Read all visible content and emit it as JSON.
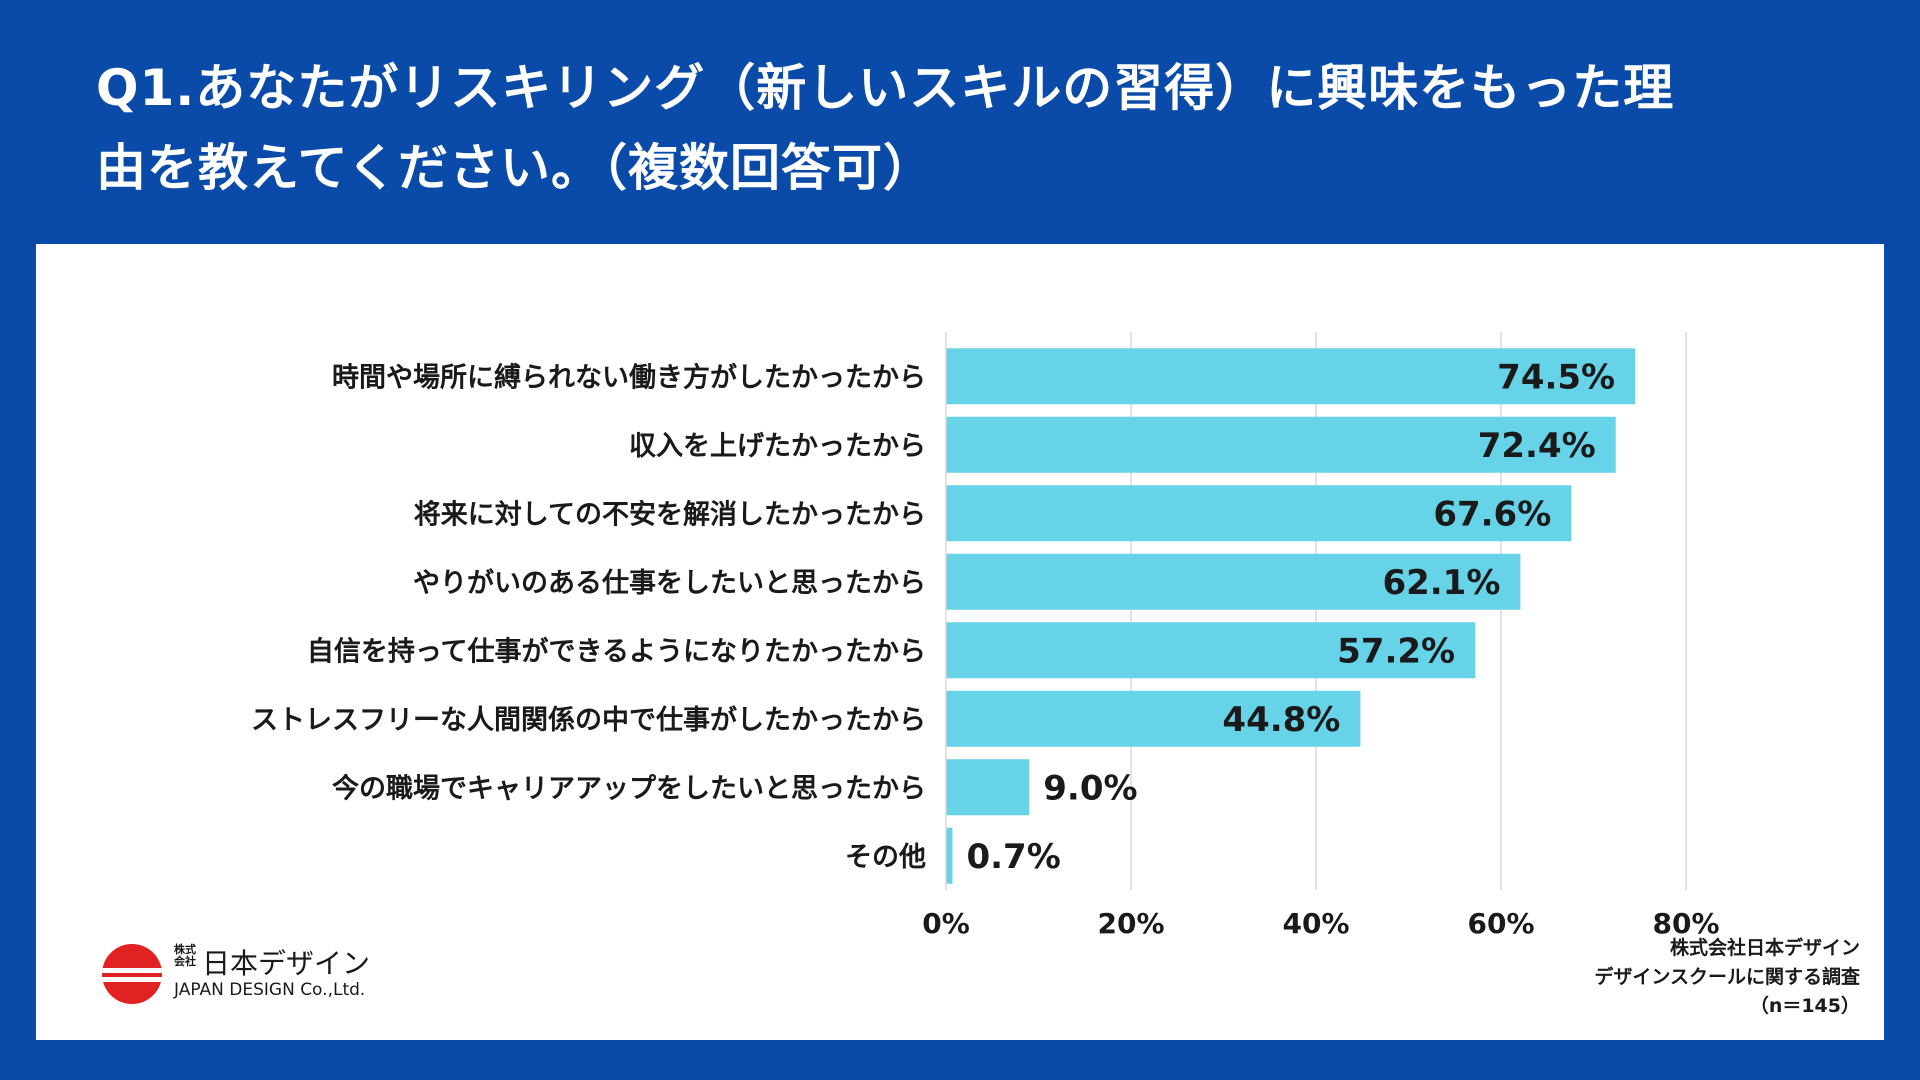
{
  "title_line1": "Q1.あなたがリスキリング（新しいスキルの習得）に興味をもった理",
  "title_line2": "由を教えてください。（複数回答可）",
  "colors": {
    "background": "#0a4aa8",
    "panel": "#ffffff",
    "bar": "#66d3e8",
    "grid": "#d9d9d9",
    "text": "#1a1a1a"
  },
  "chart_data": {
    "type": "bar",
    "orientation": "horizontal",
    "categories": [
      "時間や場所に縛られない働き方がしたかったから",
      "収入を上げたかったから",
      "将来に対しての不安を解消したかったから",
      "やりがいのある仕事をしたいと思ったから",
      "自信を持って仕事ができるようになりたかったから",
      "ストレスフリーな人間関係の中で仕事がしたかったから",
      "今の職場でキャリアアップをしたいと思ったから",
      "その他"
    ],
    "values": [
      74.5,
      72.4,
      67.6,
      62.1,
      57.2,
      44.8,
      9.0,
      0.7
    ],
    "value_labels": [
      "74.5%",
      "72.4%",
      "67.6%",
      "62.1%",
      "57.2%",
      "44.8%",
      "9.0%",
      "0.7%"
    ],
    "x_ticks": [
      0,
      20,
      40,
      60,
      80
    ],
    "x_tick_labels": [
      "0%",
      "20%",
      "40%",
      "60%",
      "80%"
    ],
    "xlim": [
      0,
      80
    ],
    "grid": true
  },
  "logo": {
    "small": "株式会社",
    "name": "日本デザイン",
    "en": "JAPAN DESIGN Co.,Ltd."
  },
  "source": {
    "line1": "株式会社日本デザイン",
    "line2": "デザインスクールに関する調査",
    "line3": "（n＝145）"
  }
}
